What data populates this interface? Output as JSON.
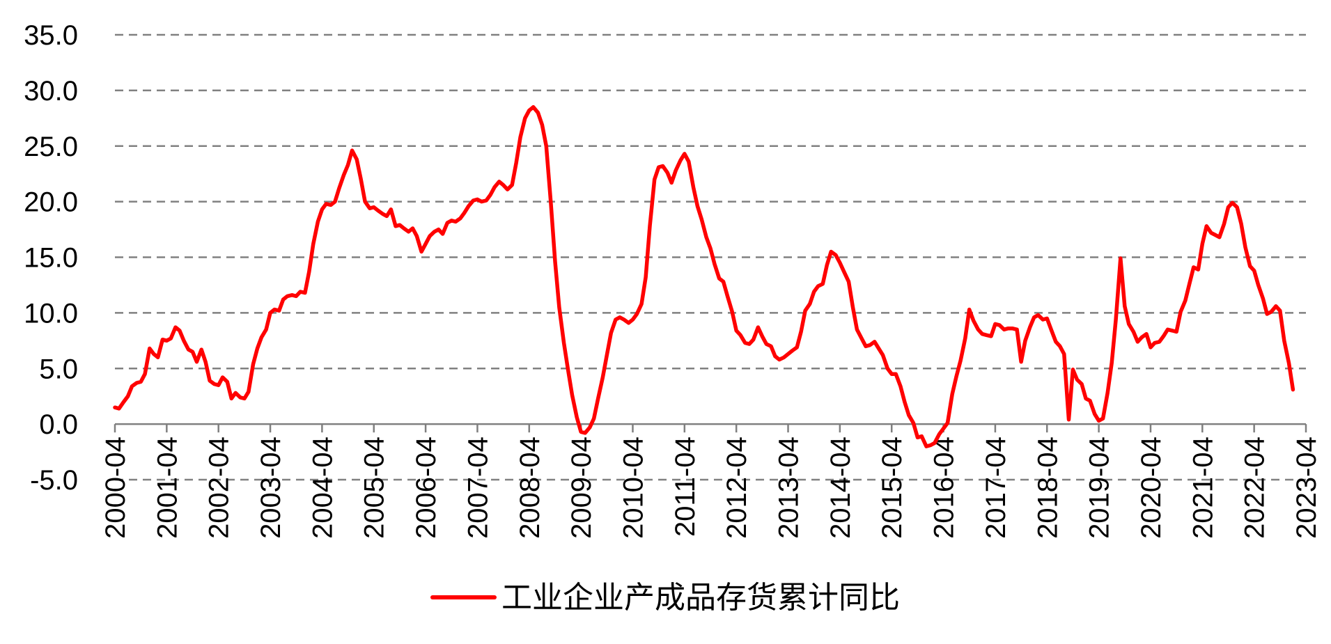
{
  "chart_data": {
    "type": "line",
    "title": "",
    "xlabel": "",
    "ylabel": "",
    "ylim": [
      -5,
      35
    ],
    "yticks": [
      "35.0",
      "30.0",
      "25.0",
      "20.0",
      "15.0",
      "10.0",
      "5.0",
      "0.0",
      "-5.0"
    ],
    "x_range": [
      2000.25,
      2023.25
    ],
    "categories": [
      "2000-04",
      "2001-04",
      "2002-04",
      "2003-04",
      "2004-04",
      "2005-04",
      "2006-04",
      "2007-04",
      "2008-04",
      "2009-04",
      "2010-04",
      "2011-04",
      "2012-04",
      "2013-04",
      "2014-04",
      "2015-04",
      "2016-04",
      "2017-04",
      "2018-04",
      "2019-04",
      "2020-04",
      "2021-04",
      "2022-04",
      "2023-04"
    ],
    "legend_position": "bottom",
    "grid": true,
    "series": [
      {
        "name": "工业企业产成品存货累计同比",
        "color": "#ff0000",
        "points": [
          [
            2000.25,
            1.5
          ],
          [
            2000.33,
            1.4
          ],
          [
            2000.42,
            2.0
          ],
          [
            2000.5,
            2.5
          ],
          [
            2000.58,
            3.4
          ],
          [
            2000.67,
            3.7
          ],
          [
            2000.75,
            3.8
          ],
          [
            2000.83,
            4.5
          ],
          [
            2000.92,
            6.8
          ],
          [
            2001.0,
            6.3
          ],
          [
            2001.08,
            6.0
          ],
          [
            2001.17,
            7.6
          ],
          [
            2001.25,
            7.5
          ],
          [
            2001.33,
            7.7
          ],
          [
            2001.42,
            8.7
          ],
          [
            2001.5,
            8.4
          ],
          [
            2001.58,
            7.5
          ],
          [
            2001.67,
            6.7
          ],
          [
            2001.75,
            6.5
          ],
          [
            2001.83,
            5.6
          ],
          [
            2001.92,
            6.7
          ],
          [
            2002.0,
            5.6
          ],
          [
            2002.08,
            3.9
          ],
          [
            2002.17,
            3.6
          ],
          [
            2002.25,
            3.5
          ],
          [
            2002.33,
            4.2
          ],
          [
            2002.42,
            3.8
          ],
          [
            2002.5,
            2.3
          ],
          [
            2002.58,
            2.8
          ],
          [
            2002.67,
            2.4
          ],
          [
            2002.75,
            2.3
          ],
          [
            2002.83,
            2.9
          ],
          [
            2002.92,
            5.4
          ],
          [
            2003.0,
            6.8
          ],
          [
            2003.08,
            7.8
          ],
          [
            2003.17,
            8.5
          ],
          [
            2003.25,
            10.0
          ],
          [
            2003.33,
            10.3
          ],
          [
            2003.42,
            10.2
          ],
          [
            2003.5,
            11.2
          ],
          [
            2003.58,
            11.5
          ],
          [
            2003.67,
            11.6
          ],
          [
            2003.75,
            11.5
          ],
          [
            2003.83,
            11.9
          ],
          [
            2003.92,
            11.8
          ],
          [
            2004.0,
            13.7
          ],
          [
            2004.08,
            16.2
          ],
          [
            2004.17,
            18.2
          ],
          [
            2004.25,
            19.3
          ],
          [
            2004.33,
            19.8
          ],
          [
            2004.42,
            19.7
          ],
          [
            2004.5,
            20.0
          ],
          [
            2004.58,
            21.2
          ],
          [
            2004.67,
            22.4
          ],
          [
            2004.75,
            23.3
          ],
          [
            2004.83,
            24.6
          ],
          [
            2004.92,
            23.8
          ],
          [
            2005.0,
            22.0
          ],
          [
            2005.08,
            20.0
          ],
          [
            2005.17,
            19.4
          ],
          [
            2005.25,
            19.5
          ],
          [
            2005.33,
            19.2
          ],
          [
            2005.42,
            18.9
          ],
          [
            2005.5,
            18.7
          ],
          [
            2005.58,
            19.3
          ],
          [
            2005.67,
            17.8
          ],
          [
            2005.75,
            17.9
          ],
          [
            2005.83,
            17.6
          ],
          [
            2005.92,
            17.3
          ],
          [
            2006.0,
            17.6
          ],
          [
            2006.08,
            16.9
          ],
          [
            2006.17,
            15.5
          ],
          [
            2006.25,
            16.2
          ],
          [
            2006.33,
            16.9
          ],
          [
            2006.42,
            17.3
          ],
          [
            2006.5,
            17.5
          ],
          [
            2006.58,
            17.1
          ],
          [
            2006.67,
            18.1
          ],
          [
            2006.75,
            18.3
          ],
          [
            2006.83,
            18.2
          ],
          [
            2006.92,
            18.5
          ],
          [
            2007.0,
            19.0
          ],
          [
            2007.08,
            19.6
          ],
          [
            2007.17,
            20.1
          ],
          [
            2007.25,
            20.2
          ],
          [
            2007.33,
            20.0
          ],
          [
            2007.42,
            20.1
          ],
          [
            2007.5,
            20.6
          ],
          [
            2007.58,
            21.3
          ],
          [
            2007.67,
            21.8
          ],
          [
            2007.75,
            21.5
          ],
          [
            2007.83,
            21.1
          ],
          [
            2007.92,
            21.5
          ],
          [
            2008.0,
            23.5
          ],
          [
            2008.08,
            25.8
          ],
          [
            2008.17,
            27.5
          ],
          [
            2008.25,
            28.2
          ],
          [
            2008.33,
            28.5
          ],
          [
            2008.42,
            28.0
          ],
          [
            2008.5,
            26.9
          ],
          [
            2008.58,
            25.0
          ],
          [
            2008.67,
            19.8
          ],
          [
            2008.75,
            14.6
          ],
          [
            2008.83,
            10.5
          ],
          [
            2008.92,
            7.3
          ],
          [
            2009.0,
            4.9
          ],
          [
            2009.08,
            2.6
          ],
          [
            2009.17,
            0.6
          ],
          [
            2009.25,
            -0.7
          ],
          [
            2009.33,
            -0.8
          ],
          [
            2009.42,
            -0.3
          ],
          [
            2009.5,
            0.5
          ],
          [
            2009.58,
            2.3
          ],
          [
            2009.67,
            4.2
          ],
          [
            2009.75,
            6.2
          ],
          [
            2009.83,
            8.2
          ],
          [
            2009.92,
            9.4
          ],
          [
            2010.0,
            9.6
          ],
          [
            2010.08,
            9.4
          ],
          [
            2010.17,
            9.1
          ],
          [
            2010.25,
            9.4
          ],
          [
            2010.33,
            9.9
          ],
          [
            2010.42,
            10.8
          ],
          [
            2010.5,
            13.2
          ],
          [
            2010.58,
            17.8
          ],
          [
            2010.67,
            22.0
          ],
          [
            2010.75,
            23.1
          ],
          [
            2010.83,
            23.2
          ],
          [
            2010.92,
            22.6
          ],
          [
            2011.0,
            21.7
          ],
          [
            2011.08,
            22.8
          ],
          [
            2011.17,
            23.7
          ],
          [
            2011.25,
            24.3
          ],
          [
            2011.33,
            23.6
          ],
          [
            2011.42,
            21.3
          ],
          [
            2011.5,
            19.6
          ],
          [
            2011.58,
            18.4
          ],
          [
            2011.67,
            16.8
          ],
          [
            2011.75,
            15.8
          ],
          [
            2011.83,
            14.4
          ],
          [
            2011.92,
            13.1
          ],
          [
            2012.0,
            12.8
          ],
          [
            2012.08,
            11.5
          ],
          [
            2012.17,
            10.1
          ],
          [
            2012.25,
            8.4
          ],
          [
            2012.33,
            8.0
          ],
          [
            2012.42,
            7.3
          ],
          [
            2012.5,
            7.2
          ],
          [
            2012.58,
            7.6
          ],
          [
            2012.67,
            8.7
          ],
          [
            2012.75,
            7.9
          ],
          [
            2012.83,
            7.2
          ],
          [
            2012.92,
            7.0
          ],
          [
            2013.0,
            6.1
          ],
          [
            2013.08,
            5.8
          ],
          [
            2013.17,
            6.0
          ],
          [
            2013.25,
            6.3
          ],
          [
            2013.33,
            6.6
          ],
          [
            2013.42,
            6.9
          ],
          [
            2013.5,
            8.3
          ],
          [
            2013.58,
            10.2
          ],
          [
            2013.67,
            10.8
          ],
          [
            2013.75,
            11.9
          ],
          [
            2013.83,
            12.4
          ],
          [
            2013.92,
            12.6
          ],
          [
            2014.0,
            14.3
          ],
          [
            2014.08,
            15.5
          ],
          [
            2014.17,
            15.2
          ],
          [
            2014.25,
            14.5
          ],
          [
            2014.33,
            13.7
          ],
          [
            2014.42,
            12.8
          ],
          [
            2014.5,
            10.5
          ],
          [
            2014.58,
            8.5
          ],
          [
            2014.67,
            7.7
          ],
          [
            2014.75,
            7.0
          ],
          [
            2014.83,
            7.1
          ],
          [
            2014.92,
            7.4
          ],
          [
            2015.0,
            6.8
          ],
          [
            2015.08,
            6.2
          ],
          [
            2015.17,
            5.0
          ],
          [
            2015.25,
            4.5
          ],
          [
            2015.33,
            4.5
          ],
          [
            2015.42,
            3.4
          ],
          [
            2015.5,
            2.0
          ],
          [
            2015.58,
            0.8
          ],
          [
            2015.67,
            0.1
          ],
          [
            2015.75,
            -1.2
          ],
          [
            2015.83,
            -1.1
          ],
          [
            2015.92,
            -2.0
          ],
          [
            2016.0,
            -1.9
          ],
          [
            2016.08,
            -1.7
          ],
          [
            2016.17,
            -0.9
          ],
          [
            2016.25,
            -0.4
          ],
          [
            2016.33,
            0.1
          ],
          [
            2016.42,
            2.7
          ],
          [
            2016.5,
            4.3
          ],
          [
            2016.58,
            5.7
          ],
          [
            2016.67,
            7.7
          ],
          [
            2016.75,
            10.3
          ],
          [
            2016.83,
            9.3
          ],
          [
            2016.92,
            8.5
          ],
          [
            2017.0,
            8.1
          ],
          [
            2017.08,
            8.0
          ],
          [
            2017.17,
            7.9
          ],
          [
            2017.25,
            9.0
          ],
          [
            2017.33,
            8.9
          ],
          [
            2017.42,
            8.5
          ],
          [
            2017.5,
            8.6
          ],
          [
            2017.58,
            8.6
          ],
          [
            2017.67,
            8.5
          ],
          [
            2017.75,
            5.6
          ],
          [
            2017.83,
            7.5
          ],
          [
            2017.92,
            8.7
          ],
          [
            2018.0,
            9.6
          ],
          [
            2018.08,
            9.8
          ],
          [
            2018.17,
            9.4
          ],
          [
            2018.25,
            9.5
          ],
          [
            2018.33,
            8.5
          ],
          [
            2018.42,
            7.4
          ],
          [
            2018.5,
            7.0
          ],
          [
            2018.58,
            6.3
          ],
          [
            2018.67,
            0.4
          ],
          [
            2018.75,
            4.9
          ],
          [
            2018.83,
            4.0
          ],
          [
            2018.92,
            3.6
          ],
          [
            2019.0,
            2.3
          ],
          [
            2019.08,
            2.1
          ],
          [
            2019.17,
            0.9
          ],
          [
            2019.25,
            0.3
          ],
          [
            2019.33,
            0.5
          ],
          [
            2019.42,
            2.8
          ],
          [
            2019.5,
            5.5
          ],
          [
            2019.58,
            9.4
          ],
          [
            2019.67,
            14.9
          ],
          [
            2019.75,
            10.6
          ],
          [
            2019.83,
            9.0
          ],
          [
            2019.92,
            8.3
          ],
          [
            2020.0,
            7.4
          ],
          [
            2020.08,
            7.8
          ],
          [
            2020.17,
            8.1
          ],
          [
            2020.25,
            6.9
          ],
          [
            2020.33,
            7.3
          ],
          [
            2020.42,
            7.4
          ],
          [
            2020.5,
            7.9
          ],
          [
            2020.58,
            8.5
          ],
          [
            2020.67,
            8.4
          ],
          [
            2020.75,
            8.3
          ],
          [
            2020.83,
            10.1
          ],
          [
            2020.92,
            11.1
          ],
          [
            2021.0,
            12.6
          ],
          [
            2021.08,
            14.1
          ],
          [
            2021.17,
            13.9
          ],
          [
            2021.25,
            16.2
          ],
          [
            2021.33,
            17.8
          ],
          [
            2021.42,
            17.2
          ],
          [
            2021.5,
            17.0
          ],
          [
            2021.58,
            16.8
          ],
          [
            2021.67,
            18.0
          ],
          [
            2021.75,
            19.5
          ],
          [
            2021.83,
            19.9
          ],
          [
            2021.92,
            19.5
          ],
          [
            2022.0,
            18.0
          ],
          [
            2022.08,
            15.9
          ],
          [
            2022.17,
            14.2
          ],
          [
            2022.25,
            13.8
          ],
          [
            2022.33,
            12.5
          ],
          [
            2022.42,
            11.3
          ],
          [
            2022.5,
            9.9
          ],
          [
            2022.58,
            10.1
          ],
          [
            2022.67,
            10.6
          ],
          [
            2022.75,
            10.2
          ],
          [
            2022.83,
            7.5
          ],
          [
            2022.92,
            5.5
          ],
          [
            2023.0,
            3.1
          ]
        ]
      }
    ]
  }
}
